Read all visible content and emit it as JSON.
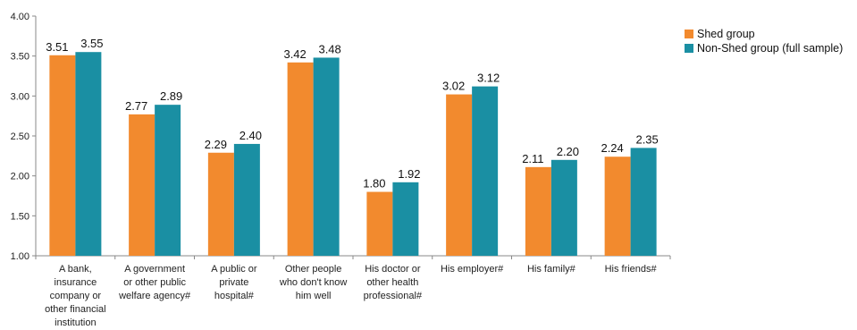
{
  "chart_data": {
    "type": "bar",
    "title": "",
    "xlabel": "",
    "ylabel": "",
    "ylim": [
      1.0,
      4.0
    ],
    "yticks": [
      "1.00",
      "1.50",
      "2.00",
      "2.50",
      "3.00",
      "3.50",
      "4.00"
    ],
    "grid": false,
    "legend_position": "top-right",
    "categories": [
      [
        "A bank,",
        "insurance",
        "company or",
        "other financial",
        "institution"
      ],
      [
        "A government",
        "or other public",
        "welfare agency#"
      ],
      [
        "A public or",
        "private",
        "hospital#"
      ],
      [
        "Other people",
        "who don't know",
        "him well"
      ],
      [
        "His doctor or",
        "other health",
        "professional#"
      ],
      [
        "His employer#"
      ],
      [
        "His family#"
      ],
      [
        "His friends#"
      ]
    ],
    "series": [
      {
        "name": "Shed group",
        "color": "#F28A2E",
        "values": [
          3.51,
          2.77,
          2.29,
          3.42,
          1.8,
          3.02,
          2.11,
          2.24
        ],
        "labels": [
          "3.51",
          "2.77",
          "2.29",
          "3.42",
          "1.80",
          "3.02",
          "2.11",
          "2.24"
        ]
      },
      {
        "name": "Non-Shed group (full sample)",
        "color": "#1A8FA3",
        "values": [
          3.55,
          2.89,
          2.4,
          3.48,
          1.92,
          3.12,
          2.2,
          2.35
        ],
        "labels": [
          "3.55",
          "2.89",
          "2.40",
          "3.48",
          "1.92",
          "3.12",
          "2.20",
          "2.35"
        ]
      }
    ]
  }
}
